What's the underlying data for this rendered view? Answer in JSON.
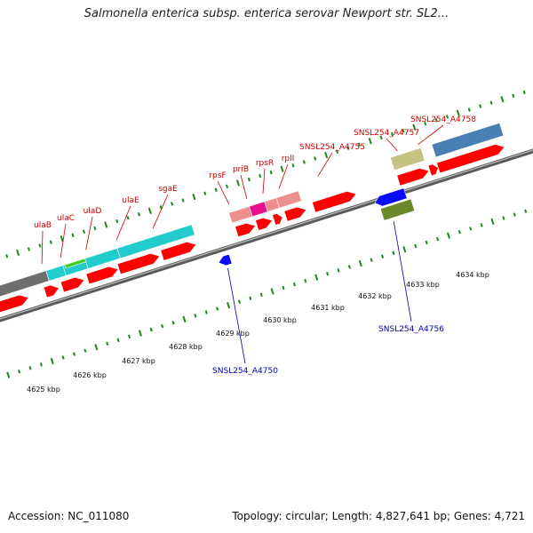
{
  "title": "Salmonella enterica subsp. enterica serovar Newport str. SL2...",
  "footer": {
    "accession": "Accession: NC_011080",
    "summary": "Topology: circular; Length: 4,827,641 bp; Genes: 4,721"
  },
  "colors": {
    "cds": "#ff0000",
    "cyan": "#22cccc",
    "pink": "#ee8f8f",
    "magenta": "#e6108f",
    "olive_light": "#c6c282",
    "steel_blue": "#4a7fb5",
    "blue": "#0a0aff",
    "olive_dark": "#6a8a2a",
    "green": "#44cc22",
    "gray_block": "#6e6e6e",
    "backbone": "#8a8a8a",
    "tick": "#1a8a1a",
    "label_top": "#cc0000",
    "label_bottom": "#0000aa"
  },
  "forward_labels": [
    "ulaB",
    "ulaC",
    "ulaD",
    "ulaE",
    "sgaE",
    "rpsF",
    "priB",
    "rpsR",
    "rplI",
    "SNSL254_A4755",
    "SNSL254_A4757",
    "SNSL254_A4758"
  ],
  "reverse_labels": [
    "SNSL254_A4750",
    "SNSL254_A4756"
  ],
  "scale_labels": [
    "4625 kbp",
    "4626 kbp",
    "4627 kbp",
    "4628 kbp",
    "4629 kbp",
    "4630 kbp",
    "4631 kbp",
    "4632 kbp",
    "4633 kbp",
    "4634 kbp"
  ]
}
